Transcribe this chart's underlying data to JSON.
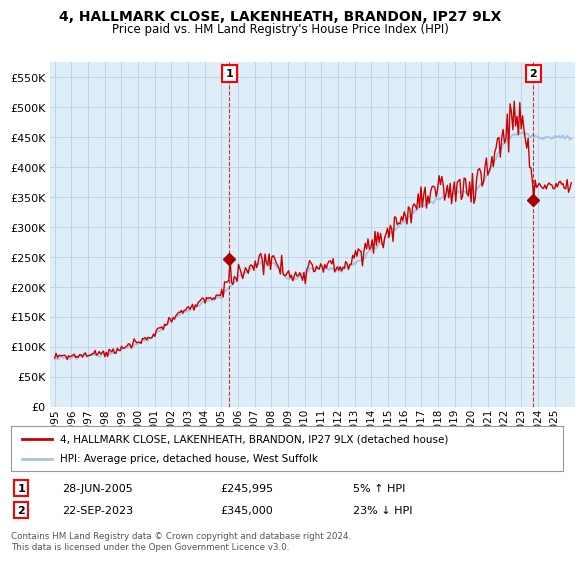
{
  "title": "4, HALLMARK CLOSE, LAKENHEATH, BRANDON, IP27 9LX",
  "subtitle": "Price paid vs. HM Land Registry's House Price Index (HPI)",
  "ytick_values": [
    0,
    50000,
    100000,
    150000,
    200000,
    250000,
    300000,
    350000,
    400000,
    450000,
    500000,
    550000
  ],
  "ylim": [
    0,
    575000
  ],
  "hpi_color": "#aac4e0",
  "hpi_fill_color": "#daeaf8",
  "price_color": "#cc0000",
  "dot_color": "#aa0000",
  "background_color": "#ffffff",
  "chart_bg_color": "#ddeef8",
  "grid_color": "#b8d0e8",
  "legend_line1": "4, HALLMARK CLOSE, LAKENHEATH, BRANDON, IP27 9LX (detached house)",
  "legend_line2": "HPI: Average price, detached house, West Suffolk",
  "sale1_date": "28-JUN-2005",
  "sale1_price": "£245,995",
  "sale1_hpi": "5% ↑ HPI",
  "sale2_date": "22-SEP-2023",
  "sale2_price": "£345,000",
  "sale2_hpi": "23% ↓ HPI",
  "footnote": "Contains HM Land Registry data © Crown copyright and database right 2024.\nThis data is licensed under the Open Government Licence v3.0.",
  "sale1_x": 2005.49,
  "sale1_y": 245995,
  "sale2_x": 2023.72,
  "sale2_y": 345000,
  "xlim_left": 1994.7,
  "xlim_right": 2026.2
}
